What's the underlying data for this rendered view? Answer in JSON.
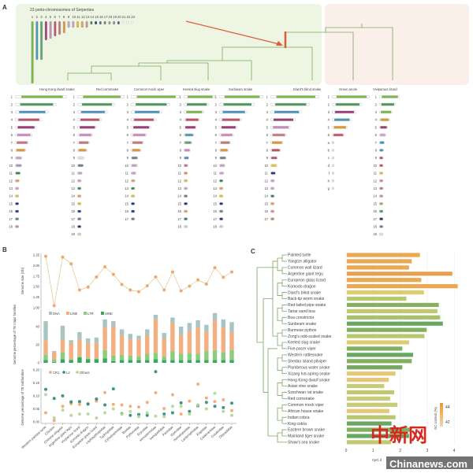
{
  "panel_a": {
    "label": "A",
    "title": "23 proto-chromosomes of Serpentes",
    "proto_numbers": [
      "1",
      "2",
      "3",
      "4",
      "5",
      "6",
      "7",
      "8",
      "9",
      "10",
      "11",
      "12",
      "13",
      "14",
      "15",
      "16",
      "17",
      "18",
      "19",
      "20",
      "21",
      "22",
      "23"
    ],
    "proto_colors": [
      "#7ab648",
      "#4d95bb",
      "#5aa870",
      "#9b3f7a",
      "#c78bc0",
      "#c0556a",
      "#c27a80",
      "#d99a3d",
      "#c8a0c8",
      "#c8a0c8",
      "#e0c040",
      "#e0a060",
      "#d09090",
      "#3a8a4a",
      "#2a3a80",
      "#5a6a90",
      "#708090",
      "#c09070",
      "#8090a0",
      "#506080",
      "#aaa",
      "#aaa",
      "#aaa"
    ],
    "species": [
      {
        "name": "Hong Kong dwarf snake",
        "rows": [
          "1",
          "2",
          "3",
          "4",
          "5",
          "6",
          "7",
          "8",
          "9",
          "10",
          "11",
          "12",
          "13",
          "14",
          "15",
          "16",
          "17",
          "18"
        ],
        "colors": [
          "#7ab648",
          "#4d9a5a",
          "#4d95bb",
          "#c0556a",
          "#9b3f7a",
          "#c78bc0",
          "#c27a80",
          "#d99a3d",
          "#c8a0c8",
          "#a0a0b0",
          "#3a8a4a",
          "#e0a060",
          "#c8a0c8",
          "#e0c040",
          "#2a3a80",
          "#2a3a80",
          "#708090",
          "#d09090"
        ]
      },
      {
        "name": "Red cornsnake",
        "rows": [
          "1",
          "2",
          "3",
          "4",
          "5",
          "6",
          "7",
          "8",
          "9",
          "10",
          "11",
          "12",
          "13",
          "14",
          "15",
          "16",
          "17",
          "18",
          "19"
        ],
        "colors": [
          "#7ab648",
          "#4d9a5a",
          "#4d95bb",
          "#c0556a",
          "#9b3f7a",
          "#c78bc0",
          "#c27a80",
          "#d99a3d",
          "#ddd",
          "#708090",
          "#c8a0c8",
          "#c8a0c8",
          "#3a8a4a",
          "#e0a060",
          "#e0c040",
          "#2a3a80",
          "#708090",
          "#2a3a80",
          "#ccc"
        ]
      },
      {
        "name": "Common mock viper",
        "rows": [
          "1",
          "2",
          "3",
          "4",
          "5",
          "6",
          "7",
          "8",
          "9",
          "10",
          "11",
          "12",
          "13",
          "14",
          "15",
          "16",
          "17"
        ],
        "colors": [
          "#7ab648",
          "#4d9a5a",
          "#4d95bb",
          "#c0556a",
          "#9b3f7a",
          "#c78bc0",
          "#c27a80",
          "#d99a3d",
          "#708090",
          "#c8a0c8",
          "#c8a0c8",
          "#e0a060",
          "#3a8a4a",
          "#e0c040",
          "#2a3a80",
          "#2a3a80",
          "#708090"
        ]
      },
      {
        "name": "Keeled slug snake",
        "rows": [
          "1",
          "2",
          "3",
          "4",
          "5",
          "6",
          "7",
          "8",
          "9",
          "10",
          "11",
          "12",
          "13",
          "14",
          "15",
          "16",
          "17",
          "18"
        ],
        "colors": [
          "#7ab648",
          "#4d9a5a",
          "#7ab648",
          "#c0556a",
          "#9b3f7a",
          "#4d95bb",
          "#5aa870",
          "#c78bc0",
          "#4d95bb",
          "#c27a80",
          "#d99a3d",
          "#e0c040",
          "#c8a0c8",
          "#708090",
          "#2a3a80",
          "#e0a060",
          "#3a8a4a",
          "#ccc"
        ]
      },
      {
        "name": "Sunbeam snake",
        "rows": [
          "1",
          "2",
          "3",
          "4",
          "5",
          "6",
          "7",
          "8",
          "9",
          "10",
          "11",
          "12",
          "13",
          "14",
          "15",
          "16",
          "17",
          "18"
        ],
        "colors": [
          "#7ab648",
          "#4d9a5a",
          "#4d95bb",
          "#c0556a",
          "#9b3f7a",
          "#c78bc0",
          "#c27a80",
          "#d99a3d",
          "#708090",
          "#c8a0c8",
          "#c8a0c8",
          "#3a8a4a",
          "#e0a060",
          "#e0c040",
          "#2a3a80",
          "#708090",
          "#2a3a80",
          "#ccc"
        ]
      },
      {
        "name": "Diard's blind snake",
        "rows": [
          "1",
          "2",
          "3",
          "4",
          "5",
          "6",
          "7",
          "8",
          "9",
          "10",
          "11",
          "12",
          "13",
          "14",
          "15",
          "16",
          "17"
        ],
        "colors": [
          "#7ab648",
          "#4d9a5a",
          "#4d95bb",
          "#9b3f7a",
          "#c78bc0",
          "#c27a80",
          "#d99a3d",
          "#c0556a",
          "#c0556a",
          "#e0c040",
          "#2a3a80",
          "#c8a0c8",
          "#c8a0c8",
          "#3a8a4a",
          "#e0a060",
          "#d09090",
          "#c09070"
        ]
      },
      {
        "name": "Green anole",
        "rows": [
          "1",
          "2",
          "3",
          "4",
          "5",
          "6",
          "a",
          "b",
          "c",
          "d",
          "f",
          "h",
          "g"
        ],
        "colors": [
          "#7ab648",
          "#4d9a5a",
          "#9b3f7a",
          "#4d95bb",
          "#d99a3d",
          "#c0556a",
          "#ddd",
          "#ddd",
          "#ddd",
          "#ddd",
          "#ddd",
          "#ddd",
          "#ddd"
        ]
      },
      {
        "name": "Viviparous lizard",
        "rows": [
          "1",
          "2",
          "3",
          "4",
          "5",
          "6",
          "7",
          "8",
          "9",
          "10",
          "11",
          "12",
          "13",
          "14",
          "15",
          "16",
          "17",
          "18",
          "19"
        ],
        "colors": [
          "#7ab648",
          "#4d9a5a",
          "#7ab648",
          "#d99a3d",
          "#9b3f7a",
          "#c8a0c8",
          "#4d95bb",
          "#4d95bb",
          "#c0556a",
          "#c0556a",
          "#e0c040",
          "#c78bc0",
          "#c27a80",
          "#c78bc0",
          "#a0b060",
          "#4d9a5a",
          "#2a3a80",
          "#708090",
          "#ddd"
        ]
      }
    ]
  },
  "panel_b": {
    "label": "B",
    "watermark_logo": "中新网",
    "watermark_site": "Chinanews.com"
  },
  "panel_c": {
    "label": "C",
    "legend_title": "GC content (%)",
    "legend_ticks": [
      "44",
      "42"
    ]
  },
  "chart_data": [
    {
      "type": "line",
      "panel": "B",
      "ylabel": "Genome size (Gb)",
      "ylim": [
        1.0,
        2.25
      ],
      "yticks": [
        "1.00",
        "1.25",
        "1.50",
        "1.75",
        "2.00",
        "2.25"
      ],
      "categories": [
        "Western painted turtle",
        "Chicken",
        "Chinese alligator",
        "Argentine giant tegu",
        "Viviparous lizard",
        "Komodo dragon",
        "European glass lizard",
        "Leptotyphlopidae",
        "Typhlopidae",
        "Cylindrophiidae",
        "Boidae",
        "Pythonidae",
        "Erycidae",
        "Xenodermidae",
        "Xenopeltidae",
        "Pareidae",
        "Viperidae",
        "Homalopsidae",
        "Lamprophiidae",
        "Elapidae",
        "Calamariidae",
        "Colubridae",
        "Dipsadidae"
      ],
      "values": [
        2.22,
        1.05,
        2.2,
        2.04,
        1.42,
        1.49,
        1.73,
        1.97,
        1.79,
        1.55,
        1.42,
        1.38,
        1.52,
        1.73,
        1.42,
        1.85,
        1.4,
        1.51,
        1.66,
        1.56,
        1.95,
        1.72,
        1.85
      ],
      "color": "#f0a870"
    },
    {
      "type": "bar",
      "stacked": true,
      "panel": "B",
      "ylabel": "Genome percentage of TE major families",
      "ylim": [
        0,
        57
      ],
      "yticks": [
        "0",
        "20",
        "40"
      ],
      "legend": "top-left",
      "series": [
        {
          "name": "SINE",
          "color": "#3aa85a",
          "values": [
            3,
            1,
            4,
            3,
            6,
            4,
            4,
            5,
            2,
            3,
            3,
            3,
            3,
            4,
            3,
            3,
            3,
            3,
            3,
            3,
            3,
            3,
            3
          ]
        },
        {
          "name": "LTR",
          "color": "#8ccc80",
          "values": [
            6,
            3,
            8,
            1,
            1,
            1,
            1,
            9,
            6,
            6,
            5,
            4,
            7,
            7,
            4,
            10,
            7,
            8,
            7,
            10,
            11,
            9,
            11
          ]
        },
        {
          "name": "LINE",
          "color": "#f4ae80",
          "values": [
            16,
            8,
            14,
            18,
            19,
            17,
            17,
            25,
            32,
            21,
            18,
            19,
            20,
            37,
            20,
            31,
            21,
            24,
            29,
            22,
            33,
            27,
            20
          ]
        },
        {
          "name": "DNA",
          "color": "#a8c4c4",
          "values": [
            21,
            1,
            15,
            3,
            8,
            5,
            6,
            9,
            6,
            7,
            6,
            4,
            7,
            5,
            6,
            6,
            9,
            9,
            8,
            7,
            8,
            9,
            11
          ]
        }
      ]
    },
    {
      "type": "scatter",
      "panel": "B",
      "ylabel": "Genome percentage of TE subfamilies",
      "ylim": [
        0,
        0.2
      ],
      "yticks": [
        "0.00",
        "0.05",
        "0.10",
        "0.15",
        "0.20"
      ],
      "legend": "top-left",
      "series": [
        {
          "name": "CR1",
          "color": "#f0a870",
          "values": [
            0.035,
            0.005,
            0.06,
            0.07,
            0.067,
            0.07,
            0.08,
            0.113,
            0.067,
            0.065,
            0.06,
            0.057,
            0.075,
            0.112,
            0.051,
            0.104,
            0.03,
            0.08,
            0.145,
            0.092,
            0.078,
            0.085,
            0.043
          ]
        },
        {
          "name": "L2",
          "color": "#2a8a80",
          "values": [
            0.125,
            0.09,
            0.1,
            0.077,
            0.078,
            0.068,
            0.088,
            0.065,
            0.127,
            0.032,
            0.025,
            0.028,
            0.025,
            0.193,
            0.03,
            0.035,
            0.073,
            0.04,
            0.062,
            0.075,
            0.06,
            0.055,
            0.072
          ]
        },
        {
          "name": "Others",
          "color": "#b0d890",
          "values": [
            0.105,
            0.015,
            0.045,
            0.025,
            0.03,
            0.03,
            0.015,
            0.035,
            0.05,
            0.03,
            0.04,
            0.02,
            0.035,
            0.022,
            0.02,
            0.06,
            0.06,
            0.03,
            0.065,
            0.05,
            0.11,
            0.04,
            0.025
          ]
        }
      ]
    },
    {
      "type": "bar",
      "orientation": "horizontal",
      "panel": "C",
      "xlabel": "CpG d",
      "xlim": [
        0,
        4.2
      ],
      "xticks": [
        "0",
        "1",
        "2",
        "3",
        "4"
      ],
      "categories": [
        "Painted turtle",
        "Yangtze alligator",
        "Common wall lizard",
        "Argentine giant tegu",
        "European glass lizard",
        "Komodo dragon",
        "Diard's blind snake",
        "Back-tip worm snake",
        "Red-tailed pipe snake",
        "Tartar sand boa",
        "Boa constrictor",
        "Sunbeam snake",
        "Burmese python",
        "Zong's odd-scaled snake",
        "Keeled slug snake",
        "Five-pacer viper",
        "Western rattlesnake",
        "Shedao island pitviper",
        "Plumbeous water snake",
        "Xizang hot-spring snake",
        "Hong Kong dwarf snake",
        "Asian vine snake",
        "Szechwan rat snake",
        "Red cornsnake",
        "Common mock viper",
        "African house snake",
        "Indian cobra",
        "King cobra",
        "Eastern brown snake",
        "Mainland tiger snake",
        "Shaw's sea snake"
      ],
      "values": [
        2.7,
        2.4,
        2.3,
        3.9,
        2.75,
        4.1,
        2.85,
        2.2,
        3.4,
        3.35,
        3.45,
        3.55,
        2.95,
        2.87,
        2.3,
        2.05,
        2.45,
        2.4,
        2.05,
        1.8,
        1.55,
        1.38,
        1.75,
        1.6,
        1.87,
        1.57,
        1.8,
        1.65,
        2.4,
        2.3,
        1.63
      ],
      "colors": [
        "#eca850",
        "#eca850",
        "#eca850",
        "#e8a050",
        "#eca850",
        "#eca850",
        "#e0cc70",
        "#b8c870",
        "#88b060",
        "#c0c870",
        "#a8c068",
        "#68a860",
        "#80b060",
        "#b8c870",
        "#e0cc70",
        "#80b060",
        "#68a860",
        "#80b060",
        "#78a860",
        "#e4c878",
        "#e4c878",
        "#c8cc78",
        "#c0c870",
        "#c8cc78",
        "#c8cc78",
        "#e4c878",
        "#b8c870",
        "#68a860",
        "#80b060",
        "#68a860",
        "#c0c870"
      ]
    }
  ]
}
